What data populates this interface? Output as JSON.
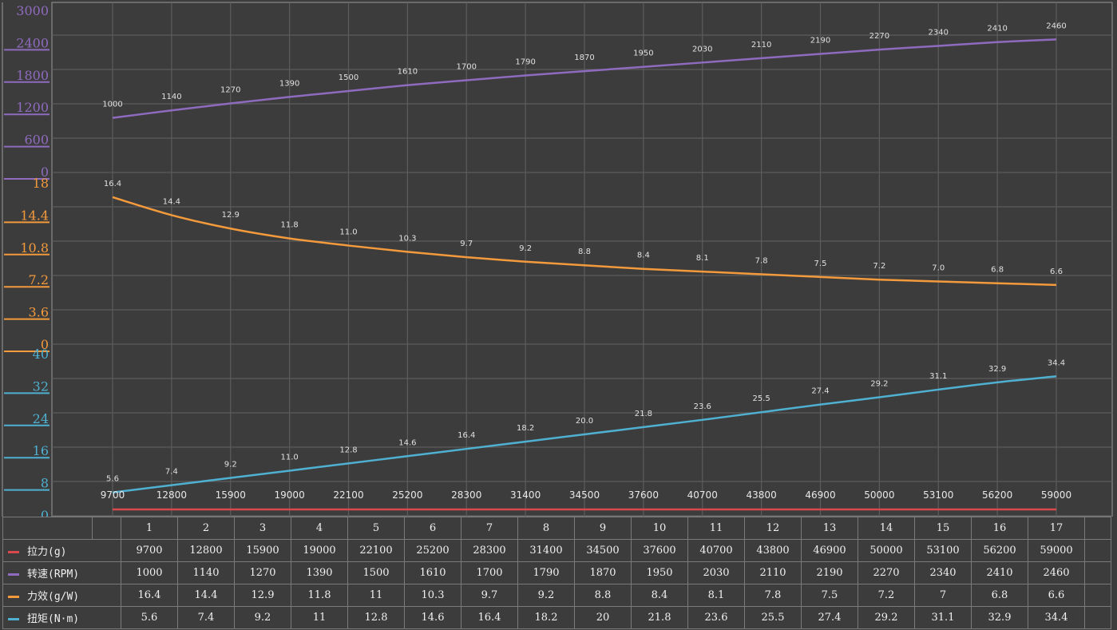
{
  "chart_data": {
    "type": "line",
    "x": [
      9700,
      12800,
      15900,
      19000,
      22100,
      25200,
      28300,
      31400,
      34500,
      37600,
      40700,
      43800,
      46900,
      50000,
      53100,
      56200,
      59000
    ],
    "x_tick_labels": [
      "9700",
      "12800",
      "15900",
      "19000",
      "22100",
      "25200",
      "28300",
      "31400",
      "34500",
      "37600",
      "40700",
      "43800",
      "46900",
      "50000",
      "53100",
      "56200",
      "59000"
    ],
    "grid": true,
    "y_axes": [
      {
        "id": "rpm",
        "range": [
          0,
          3000
        ],
        "ticks": [
          "3000",
          "2400",
          "1800",
          "1200",
          "600",
          "0"
        ],
        "color": "#8f6bbf"
      },
      {
        "id": "eff",
        "range": [
          0,
          18
        ],
        "ticks": [
          "18",
          "14.4",
          "10.8",
          "7.2",
          "3.6",
          "0"
        ],
        "color": "#f39a3c"
      },
      {
        "id": "torque",
        "range": [
          0,
          40
        ],
        "ticks": [
          "40",
          "32",
          "24",
          "16",
          "8",
          "0"
        ],
        "color": "#4fb0d1"
      }
    ],
    "series": [
      {
        "name": "拉力(g)",
        "color": "#d9484c",
        "values": [
          9700,
          12800,
          15900,
          19000,
          22100,
          25200,
          28300,
          31400,
          34500,
          37600,
          40700,
          43800,
          46900,
          50000,
          53100,
          56200,
          59000
        ]
      },
      {
        "name": "转速(RPM)",
        "color": "#8f6bbf",
        "axis": "rpm",
        "values": [
          1000,
          1140,
          1270,
          1390,
          1500,
          1610,
          1700,
          1790,
          1870,
          1950,
          2030,
          2110,
          2190,
          2270,
          2340,
          2410,
          2460
        ],
        "labels": [
          "1000",
          "1140",
          "1270",
          "1390",
          "1500",
          "1610",
          "1700",
          "1790",
          "1870",
          "1950",
          "2030",
          "2110",
          "2190",
          "2270",
          "2340",
          "2410",
          "2460"
        ]
      },
      {
        "name": "力效(g/W)",
        "color": "#f39a3c",
        "axis": "eff",
        "values": [
          16.4,
          14.4,
          12.9,
          11.8,
          11,
          10.3,
          9.7,
          9.2,
          8.8,
          8.4,
          8.1,
          7.8,
          7.5,
          7.2,
          7,
          6.8,
          6.6
        ],
        "labels": [
          "16.4",
          "14.4",
          "12.9",
          "11.8",
          "11.0",
          "10.3",
          "9.7",
          "9.2",
          "8.8",
          "8.4",
          "8.1",
          "7.8",
          "7.5",
          "7.2",
          "7.0",
          "6.8",
          "6.6"
        ]
      },
      {
        "name": "扭矩(N·m)",
        "color": "#4fb0d1",
        "axis": "torque",
        "values": [
          5.6,
          7.4,
          9.2,
          11,
          12.8,
          14.6,
          16.4,
          18.2,
          20,
          21.8,
          23.6,
          25.5,
          27.4,
          29.2,
          31.1,
          32.9,
          34.4
        ],
        "labels": [
          "5.6",
          "7.4",
          "9.2",
          "11.0",
          "12.8",
          "14.6",
          "16.4",
          "18.2",
          "20.0",
          "21.8",
          "23.6",
          "25.5",
          "27.4",
          "29.2",
          "31.1",
          "32.9",
          "34.4"
        ]
      }
    ]
  },
  "table": {
    "header": [
      "1",
      "2",
      "3",
      "4",
      "5",
      "6",
      "7",
      "8",
      "9",
      "10",
      "11",
      "12",
      "13",
      "14",
      "15",
      "16",
      "17"
    ],
    "rows": [
      {
        "label": "拉力(g)",
        "color": "#d9484c",
        "values": [
          "9700",
          "12800",
          "15900",
          "19000",
          "22100",
          "25200",
          "28300",
          "31400",
          "34500",
          "37600",
          "40700",
          "43800",
          "46900",
          "50000",
          "53100",
          "56200",
          "59000"
        ]
      },
      {
        "label": "转速(RPM)",
        "color": "#8f6bbf",
        "values": [
          "1000",
          "1140",
          "1270",
          "1390",
          "1500",
          "1610",
          "1700",
          "1790",
          "1870",
          "1950",
          "2030",
          "2110",
          "2190",
          "2270",
          "2340",
          "2410",
          "2460"
        ]
      },
      {
        "label": "力效(g/W)",
        "color": "#f39a3c",
        "values": [
          "16.4",
          "14.4",
          "12.9",
          "11.8",
          "11",
          "10.3",
          "9.7",
          "9.2",
          "8.8",
          "8.4",
          "8.1",
          "7.8",
          "7.5",
          "7.2",
          "7",
          "6.8",
          "6.6"
        ]
      },
      {
        "label": "扭矩(N·m)",
        "color": "#4fb0d1",
        "values": [
          "5.6",
          "7.4",
          "9.2",
          "11",
          "12.8",
          "14.6",
          "16.4",
          "18.2",
          "20",
          "21.8",
          "23.6",
          "25.5",
          "27.4",
          "29.2",
          "31.1",
          "32.9",
          "34.4"
        ]
      }
    ]
  }
}
